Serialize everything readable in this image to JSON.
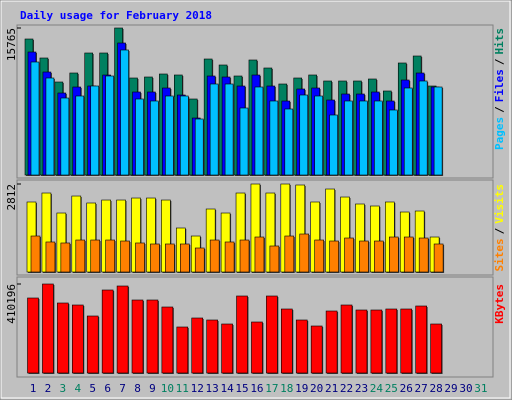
{
  "chart_data": [
    {
      "type": "bar",
      "title": "Daily usage for February 2018",
      "ylim": [
        0,
        15765
      ],
      "yticks": [
        15765
      ],
      "legend_separator": "/",
      "series": [
        {
          "name": "Hits",
          "color": "#008060",
          "values": [
            14585,
            12548,
            9974,
            10939,
            13084,
            13084,
            15765,
            10403,
            10510,
            10832,
            10725,
            8151,
            12440,
            11797,
            10617,
            12333,
            11475,
            9759,
            10403,
            10725,
            10081,
            10081,
            10081,
            10296,
            9009,
            12012,
            12762,
            9545,
            null,
            null,
            null
          ]
        },
        {
          "name": "Files",
          "color": "#0000ff",
          "values": [
            13191,
            11046,
            8794,
            9437,
            9544,
            10724,
            14156,
            8901,
            8901,
            9330,
            8579,
            6113,
            10617,
            10510,
            9544,
            10724,
            9544,
            7936,
            9223,
            9330,
            8043,
            8686,
            8686,
            8901,
            7936,
            10188,
            10938,
            9437,
            null,
            null,
            null
          ]
        },
        {
          "name": "Pages",
          "color": "#00c0ff",
          "values": [
            12118,
            10402,
            8257,
            8472,
            9544,
            10617,
            13405,
            8150,
            7936,
            8472,
            8472,
            6005,
            9759,
            9759,
            7185,
            9437,
            7936,
            7078,
            8579,
            8472,
            6434,
            7936,
            7936,
            7936,
            6971,
            9330,
            10080,
            9437,
            null,
            null,
            null
          ]
        }
      ]
    },
    {
      "type": "bar",
      "ylim": [
        0,
        2812
      ],
      "yticks": [
        2812
      ],
      "legend_separator": "/",
      "series": [
        {
          "name": "Visits",
          "color": "#ffff00",
          "values": [
            2237,
            2524,
            1885,
            2428,
            2205,
            2300,
            2300,
            2364,
            2364,
            2300,
            1406,
            1150,
            2013,
            1885,
            2524,
            2812,
            2524,
            2812,
            2780,
            2237,
            2652,
            2396,
            2173,
            2109,
            2237,
            1917,
            1949,
            1118,
            null,
            null,
            null
          ]
        },
        {
          "name": "Sites",
          "color": "#ff8000",
          "values": [
            1150,
            959,
            927,
            1022,
            1022,
            1022,
            990,
            927,
            895,
            895,
            895,
            767,
            1022,
            959,
            1022,
            1118,
            831,
            1150,
            1214,
            1022,
            990,
            1086,
            990,
            990,
            1118,
            1118,
            1086,
            895,
            null,
            null,
            null
          ]
        }
      ]
    },
    {
      "type": "bar",
      "ylim": [
        0,
        410196
      ],
      "yticks": [
        410196
      ],
      "categories": [
        "1",
        "2",
        "3",
        "4",
        "5",
        "6",
        "7",
        "8",
        "9",
        "10",
        "11",
        "12",
        "13",
        "14",
        "15",
        "16",
        "17",
        "18",
        "19",
        "20",
        "21",
        "22",
        "23",
        "24",
        "25",
        "26",
        "27",
        "28",
        "29",
        "30",
        "31"
      ],
      "category_colors": [
        "#000080",
        "#000080",
        "#008060",
        "#008060",
        "#000080",
        "#000080",
        "#000080",
        "#000080",
        "#000080",
        "#008060",
        "#008060",
        "#000080",
        "#000080",
        "#000080",
        "#000080",
        "#000080",
        "#008060",
        "#008060",
        "#000080",
        "#000080",
        "#000080",
        "#000080",
        "#000080",
        "#008060",
        "#008060",
        "#000080",
        "#000080",
        "#000080",
        "#000080",
        "#000080",
        "#008060"
      ],
      "series": [
        {
          "name": "KBytes",
          "color": "#ff0000",
          "values": [
            345675,
            410196,
            322630,
            313412,
            262713,
            382547,
            400983,
            336457,
            336457,
            304194,
            212014,
            253495,
            244277,
            225841,
            354893,
            235059,
            354893,
            294976,
            244277,
            216623,
            285758,
            313412,
            290367,
            290367,
            294976,
            294976,
            308803,
            225841,
            null,
            null,
            null
          ]
        }
      ]
    }
  ]
}
